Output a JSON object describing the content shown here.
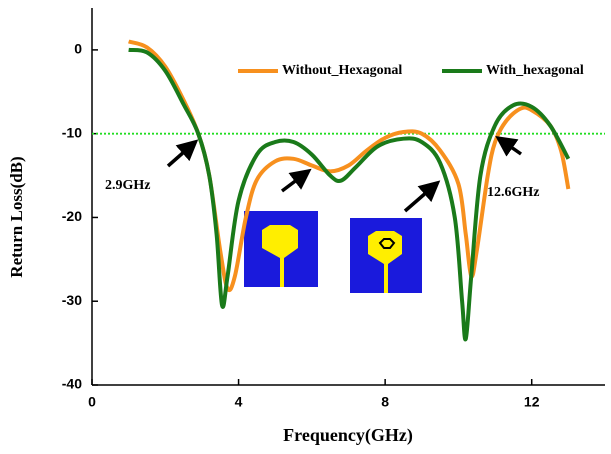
{
  "chart_data": {
    "type": "line",
    "x_label": "Frequency(GHz)",
    "y_label": "Return Loss(dB)",
    "xlim": [
      0,
      14
    ],
    "ylim": [
      -40,
      5
    ],
    "xticks": [
      0,
      4,
      8,
      12
    ],
    "yticks": [
      0,
      -10,
      -20,
      -30,
      -40
    ],
    "reference_line": {
      "value": -10,
      "color": "#22dd22"
    },
    "annotations": [
      "2.9GHz",
      "12.6GHz"
    ],
    "series": [
      {
        "name": "Without_Hexagonal",
        "color": "#f7901e",
        "x": [
          1,
          1.5,
          2,
          2.5,
          2.9,
          3.2,
          3.5,
          3.7,
          3.9,
          4.2,
          4.5,
          5,
          5.5,
          6,
          6.5,
          7,
          7.5,
          8,
          8.5,
          9,
          9.5,
          10,
          10.2,
          10.35,
          10.5,
          10.8,
          11,
          11.3,
          11.7,
          12,
          12.5,
          12.8,
          13
        ],
        "values": [
          1,
          0.3,
          -2,
          -6,
          -10,
          -15,
          -24,
          -28.5,
          -27,
          -20,
          -15.5,
          -13.3,
          -13,
          -13.8,
          -14.5,
          -13.8,
          -12,
          -10.5,
          -9.8,
          -10,
          -12,
          -16,
          -22,
          -27,
          -24,
          -15,
          -11,
          -8.5,
          -7,
          -7.2,
          -9,
          -12,
          -16.6
        ]
      },
      {
        "name": "With_hexagonal",
        "color": "#1a7a1a",
        "x": [
          1,
          1.5,
          2,
          2.5,
          2.9,
          3.2,
          3.4,
          3.55,
          3.7,
          4,
          4.5,
          5,
          5.5,
          6,
          6.5,
          6.8,
          7.2,
          7.8,
          8.5,
          9,
          9.5,
          9.9,
          10.1,
          10.2,
          10.35,
          10.6,
          11,
          11.5,
          12,
          12.5,
          13
        ],
        "values": [
          0,
          -0.3,
          -2.5,
          -6.5,
          -10,
          -15,
          -22,
          -30.5,
          -27,
          -18,
          -12.5,
          -11,
          -11,
          -12.5,
          -15,
          -15.6,
          -14,
          -11.5,
          -10.6,
          -11,
          -13.5,
          -20,
          -30,
          -34.5,
          -27,
          -15,
          -9,
          -6.6,
          -6.8,
          -9,
          -13
        ]
      }
    ]
  }
}
